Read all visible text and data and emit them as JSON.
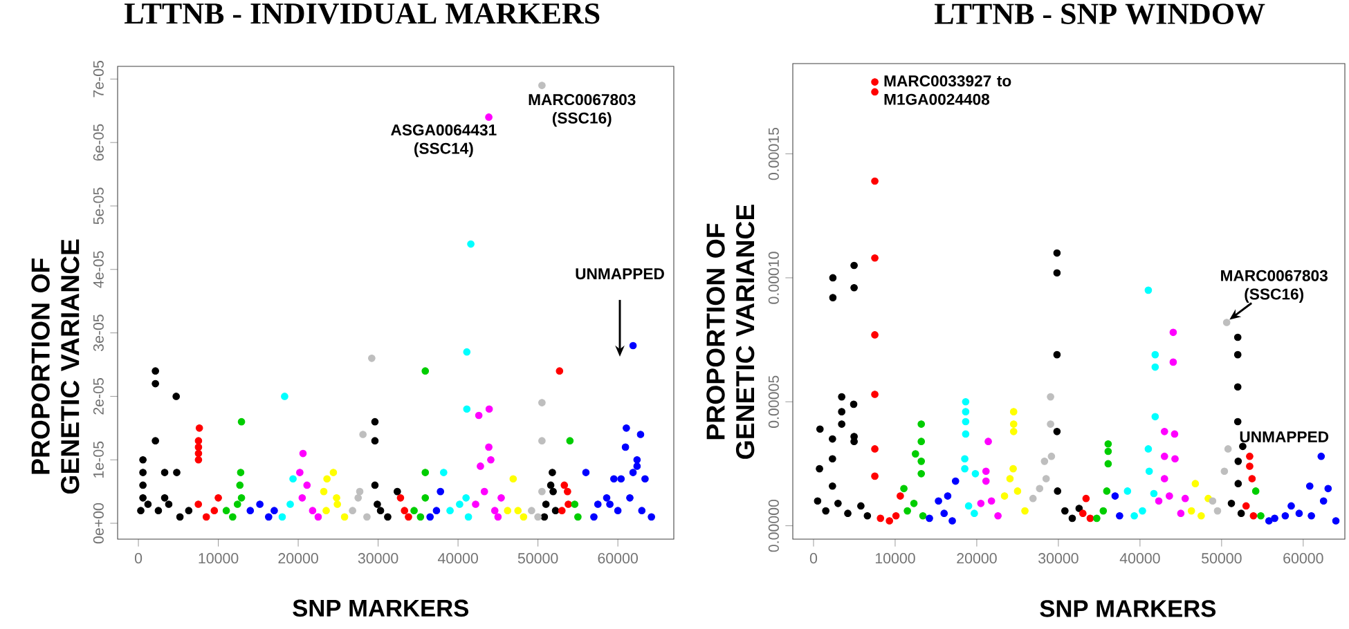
{
  "chart_data": [
    {
      "type": "scatter",
      "title": "LTTNB - INDIVIDUAL MARKERS",
      "xlabel": "SNP MARKERS",
      "ylabel": "PROPORTION OF GENETIC VARIANCE",
      "xlim": [
        -2600,
        67000
      ],
      "ylim": [
        -2.5e-06,
        7.2e-05
      ],
      "xticks": [
        0,
        10000,
        20000,
        30000,
        40000,
        50000,
        60000
      ],
      "yticks": [
        {
          "value": 0,
          "label": "0e+00"
        },
        {
          "value": 1e-05,
          "label": "1e-05"
        },
        {
          "value": 2e-05,
          "label": "2e-05"
        },
        {
          "value": 3e-05,
          "label": "3e-05"
        },
        {
          "value": 4e-05,
          "label": "4e-05"
        },
        {
          "value": 5e-05,
          "label": "5e-05"
        },
        {
          "value": 6e-05,
          "label": "6e-05"
        },
        {
          "value": 7e-05,
          "label": "7e-05"
        }
      ],
      "annotations": [
        {
          "text": "ASGA0064431 (SSC14)",
          "x": 43850,
          "y": 6.4e-05
        },
        {
          "text": "MARC0067803 (SSC16)",
          "x": 50500,
          "y": 6.9e-05
        },
        "UNMAPPED"
      ],
      "series": [
        {
          "color": "#000000",
          "x": [
            300,
            1200,
            2500,
            3800,
            5200,
            6300,
            570,
            2130,
            2130,
            4730,
            2130,
            570,
            570,
            570,
            3290,
            4800,
            3290,
            29600,
            29600,
            29600,
            32400,
            30300,
            31200,
            29900,
            51800,
            51600,
            51900,
            51000,
            52200,
            50800
          ],
          "values": [
            2e-06,
            3e-06,
            2e-06,
            3e-06,
            1e-06,
            2e-06,
            4e-06,
            2.4e-05,
            2.2e-05,
            2e-05,
            1.3e-05,
            1e-05,
            8e-06,
            6e-06,
            8e-06,
            8e-06,
            4e-06,
            1.6e-05,
            1.3e-05,
            6e-06,
            5e-06,
            2e-06,
            1e-06,
            3e-06,
            8e-06,
            6e-06,
            5e-06,
            3e-06,
            2e-06,
            1e-06
          ]
        },
        {
          "color": "#ff0000",
          "x": [
            7630,
            7520,
            7520,
            7520,
            7520,
            7500,
            8500,
            9500,
            10000,
            32800,
            33300,
            33800,
            53300,
            53700,
            52700,
            53000,
            53800
          ],
          "values": [
            1.5e-05,
            1.3e-05,
            1.2e-05,
            1.1e-05,
            1e-05,
            3e-06,
            1e-06,
            2e-06,
            4e-06,
            4e-06,
            2e-06,
            1e-06,
            6e-06,
            5e-06,
            2.4e-05,
            2e-06,
            3e-06
          ]
        },
        {
          "color": "#00cd00",
          "x": [
            12900,
            12800,
            12700,
            12900,
            11000,
            11800,
            12400,
            35900,
            35900,
            35900,
            34500,
            35300,
            54000,
            54600,
            55000
          ],
          "values": [
            1.6e-05,
            8e-06,
            6e-06,
            4e-06,
            2e-06,
            1e-06,
            3e-06,
            2.4e-05,
            8e-06,
            4e-06,
            2e-06,
            1e-06,
            1.3e-05,
            3e-06,
            1e-06
          ]
        },
        {
          "color": "#0000ff",
          "x": [
            14000,
            15200,
            16300,
            17000,
            36500,
            37800,
            37300,
            56000,
            57500,
            58600,
            59500,
            60400,
            61900,
            61060,
            62840,
            60950,
            62400,
            62400,
            61900,
            63400,
            59000,
            60000,
            61500,
            63000,
            64200,
            57000
          ],
          "values": [
            2e-06,
            3e-06,
            1e-06,
            2e-06,
            1e-06,
            5e-06,
            2e-06,
            8e-06,
            3e-06,
            4e-06,
            7e-06,
            7e-06,
            2.8e-05,
            1.5e-05,
            1.4e-05,
            1.2e-05,
            1e-05,
            9e-06,
            8e-06,
            7e-06,
            3e-06,
            2e-06,
            4e-06,
            2e-06,
            1e-06,
            1e-06
          ]
        },
        {
          "color": "#00ffff",
          "x": [
            18300,
            19350,
            18000,
            19000,
            41600,
            41100,
            41100,
            38200,
            39000,
            40200,
            41000,
            41300
          ],
          "values": [
            2e-05,
            7e-06,
            1e-06,
            3e-06,
            4.4e-05,
            2.7e-05,
            1.8e-05,
            8e-06,
            2e-06,
            3e-06,
            4e-06,
            1e-06
          ]
        },
        {
          "color": "#ff00ff",
          "x": [
            20600,
            20200,
            21100,
            20500,
            21800,
            22500,
            43850,
            42600,
            43900,
            43850,
            42800,
            44100,
            45400,
            42200,
            43300,
            44600,
            45000
          ],
          "values": [
            1.1e-05,
            8e-06,
            6e-06,
            4e-06,
            2e-06,
            1e-06,
            6.4e-05,
            1.7e-05,
            1.8e-05,
            1.2e-05,
            9e-06,
            1e-05,
            4e-06,
            3e-06,
            5e-06,
            2e-06,
            1e-06
          ]
        },
        {
          "color": "#ffff00",
          "x": [
            24400,
            23600,
            23200,
            24800,
            23500,
            24900,
            25800,
            46900,
            46200,
            47500,
            48200
          ],
          "values": [
            8e-06,
            7e-06,
            5e-06,
            4e-06,
            2e-06,
            3e-06,
            1e-06,
            7e-06,
            2e-06,
            2e-06,
            1e-06
          ]
        },
        {
          "color": "#bebebe",
          "x": [
            29200,
            28100,
            27700,
            26800,
            27500,
            28600,
            50500,
            50500,
            50500,
            50500,
            49200,
            50000
          ],
          "values": [
            2.6e-05,
            1.4e-05,
            5e-06,
            2e-06,
            4e-06,
            1e-06,
            6.9e-05,
            1.9e-05,
            1.3e-05,
            5e-06,
            2e-06,
            1e-06
          ]
        }
      ]
    },
    {
      "type": "scatter",
      "title": "LTTNB - SNP WINDOW",
      "xlabel": "SNP MARKERS",
      "ylabel": "PROPORTION OF GENETIC VARIANCE",
      "xlim": [
        -2540,
        65100
      ],
      "ylim": [
        -5.4e-06,
        0.0001864
      ],
      "xticks": [
        0,
        10000,
        20000,
        30000,
        40000,
        50000,
        60000
      ],
      "yticks": [
        {
          "value": 0,
          "label": "0.00000"
        },
        {
          "value": 5e-05,
          "label": "0.00005"
        },
        {
          "value": 0.0001,
          "label": "0.00010"
        },
        {
          "value": 0.00015,
          "label": "0.00015"
        }
      ],
      "annotations": [
        {
          "text": "MARC0033927 to M1GA0024408",
          "x": 7510,
          "y": 0.000179
        },
        {
          "text": "MARC0067803 (SSC16)",
          "x": 50620,
          "y": 8.2e-05
        },
        "UNMAPPED"
      ],
      "series": [
        {
          "color": "#000000",
          "x": [
            2370,
            2370,
            4970,
            4970,
            3450,
            3450,
            3450,
            4920,
            790,
            2320,
            2320,
            2320,
            730,
            4970,
            4970,
            500,
            1500,
            3000,
            4200,
            5800,
            6600,
            29830,
            29830,
            29830,
            29830,
            29900,
            32540,
            30800,
            31700,
            51980,
            51980,
            51980,
            51980,
            52590,
            52030,
            52030,
            51200,
            52400
          ],
          "values": [
            0.0001,
            9.2e-05,
            0.000105,
            9.6e-05,
            5.2e-05,
            4.6e-05,
            4.1e-05,
            4.9e-05,
            3.9e-05,
            3.5e-05,
            2.7e-05,
            1.6e-05,
            2.3e-05,
            3.6e-05,
            3.4e-05,
            1e-05,
            6e-06,
            9e-06,
            5e-06,
            8e-06,
            4e-06,
            0.00011,
            0.000102,
            6.9e-05,
            3.8e-05,
            1.4e-05,
            7e-06,
            6e-06,
            3e-06,
            7.6e-05,
            6.9e-05,
            5.6e-05,
            4.2e-05,
            3.2e-05,
            2.6e-05,
            1.7e-05,
            9e-06,
            5e-06
          ]
        },
        {
          "color": "#ff0000",
          "x": [
            7510,
            7510,
            7510,
            7510,
            7510,
            7510,
            7510,
            7510,
            10630,
            8200,
            9300,
            10100,
            33390,
            33000,
            33900,
            53440,
            53440,
            53730,
            53000,
            53900
          ],
          "values": [
            0.000179,
            0.000175,
            0.000139,
            0.000108,
            7.7e-05,
            5.3e-05,
            3.1e-05,
            2e-05,
            1.2e-05,
            3e-06,
            2e-06,
            4e-06,
            1.1e-05,
            5e-06,
            3e-06,
            2.8e-05,
            2.4e-05,
            1.9e-05,
            8e-06,
            4e-06
          ]
        },
        {
          "color": "#00cd00",
          "x": [
            13200,
            13200,
            12490,
            13200,
            13200,
            11070,
            11500,
            12300,
            13400,
            36100,
            36100,
            36100,
            35930,
            34700,
            35500,
            54180,
            54800
          ],
          "values": [
            4.1e-05,
            3.4e-05,
            2.9e-05,
            2.6e-05,
            2.1e-05,
            1.5e-05,
            6e-06,
            9e-06,
            4e-06,
            3.3e-05,
            3e-05,
            2.5e-05,
            1.4e-05,
            3e-06,
            6e-06,
            1.4e-05,
            4e-06
          ]
        },
        {
          "color": "#0000ff",
          "x": [
            17400,
            16440,
            15310,
            14200,
            16000,
            17000,
            36950,
            37500,
            62200,
            60800,
            63050,
            62490,
            58530,
            56500,
            57800,
            59500,
            61000,
            64000,
            55800
          ],
          "values": [
            1.8e-05,
            1.2e-05,
            1e-05,
            3e-06,
            5e-06,
            2e-06,
            1.2e-05,
            4e-06,
            2.8e-05,
            1.6e-05,
            1.5e-05,
            1e-05,
            8e-06,
            3e-06,
            4e-06,
            5e-06,
            4e-06,
            2e-06,
            2e-06
          ]
        },
        {
          "color": "#00ffff",
          "x": [
            18640,
            18640,
            18640,
            18640,
            18530,
            18530,
            19830,
            19000,
            19700,
            41020,
            41860,
            41860,
            41860,
            41020,
            41130,
            41700,
            38470,
            39300,
            40300
          ],
          "values": [
            5e-05,
            4.6e-05,
            4.2e-05,
            3.7e-05,
            2.7e-05,
            2.3e-05,
            2.1e-05,
            8e-06,
            5e-06,
            9.5e-05,
            6.9e-05,
            6.4e-05,
            4.4e-05,
            3.1e-05,
            2.2e-05,
            1.3e-05,
            1.4e-05,
            4e-06,
            6e-06
          ]
        },
        {
          "color": "#ff00ff",
          "x": [
            21410,
            21130,
            21130,
            20500,
            21800,
            22600,
            44070,
            44070,
            43000,
            44240,
            43000,
            44290,
            43000,
            45540,
            42300,
            43600,
            45000
          ],
          "values": [
            3.4e-05,
            2.2e-05,
            1.8e-05,
            9e-06,
            1e-05,
            4e-06,
            7.8e-05,
            6.6e-05,
            3.8e-05,
            3.7e-05,
            2.8e-05,
            2.7e-05,
            1.9e-05,
            1.1e-05,
            1e-05,
            1.2e-05,
            5e-06
          ]
        },
        {
          "color": "#ffff00",
          "x": [
            24520,
            24520,
            24520,
            24460,
            24070,
            23400,
            25000,
            25900,
            46780,
            48360,
            46300,
            47500
          ],
          "values": [
            4.6e-05,
            4.1e-05,
            3.8e-05,
            2.3e-05,
            1.9e-05,
            1.2e-05,
            1.4e-05,
            6e-06,
            1.7e-05,
            1.1e-05,
            6e-06,
            4e-06
          ]
        },
        {
          "color": "#bebebe",
          "x": [
            29040,
            29040,
            28300,
            29150,
            26890,
            27700,
            28500,
            50620,
            50790,
            50340,
            49500,
            48900
          ],
          "values": [
            5.2e-05,
            4.1e-05,
            2.6e-05,
            2.8e-05,
            1.1e-05,
            1.5e-05,
            1.9e-05,
            8.2e-05,
            3.1e-05,
            2.2e-05,
            6e-06,
            1e-05
          ]
        }
      ]
    }
  ]
}
